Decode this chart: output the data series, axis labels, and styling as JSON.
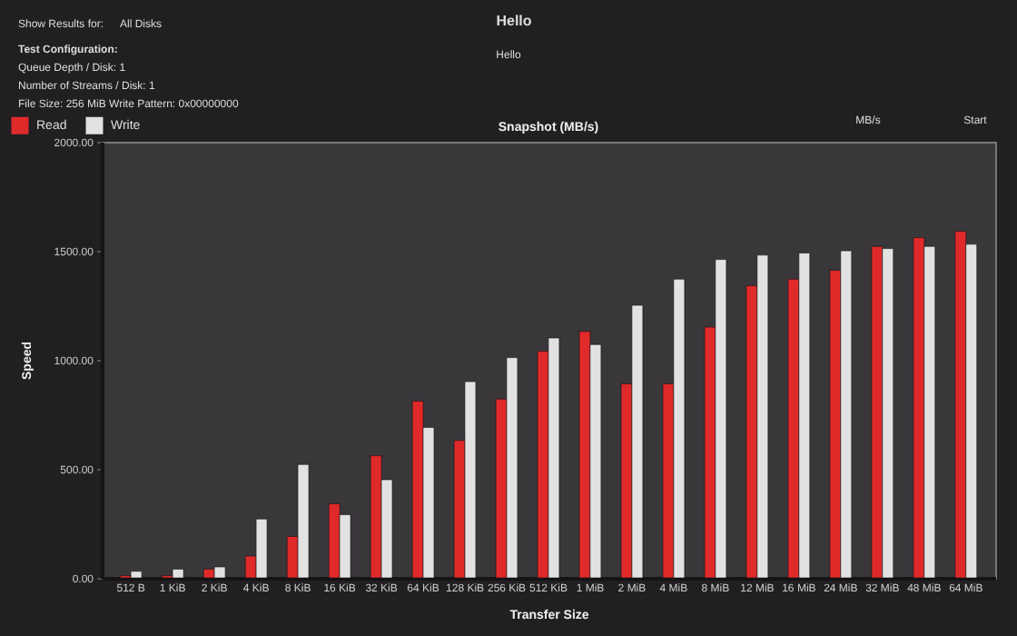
{
  "chart_data": {
    "type": "bar",
    "title": "Snapshot (MB/s)",
    "xlabel": "Transfer Size",
    "ylabel": "Speed",
    "categories": [
      "512 B",
      "1 KiB",
      "2 KiB",
      "4 KiB",
      "8 KiB",
      "16 KiB",
      "32 KiB",
      "64 KiB",
      "128 KiB",
      "256 KiB",
      "512 KiB",
      "1 MiB",
      "2 MiB",
      "4 MiB",
      "8 MiB",
      "12 MiB",
      "16 MiB",
      "24 MiB",
      "32 MiB",
      "48 MiB",
      "64 MiB"
    ],
    "series": [
      {
        "name": "Read",
        "color": "#e02a2a",
        "values": [
          10,
          10,
          40,
          100,
          190,
          340,
          560,
          810,
          630,
          820,
          1040,
          1130,
          890,
          890,
          1150,
          1340,
          1370,
          1410,
          1520,
          1560,
          1590
        ]
      },
      {
        "name": "Write",
        "color": "#e2e2e2",
        "values": [
          30,
          40,
          50,
          270,
          520,
          290,
          450,
          690,
          900,
          1010,
          1100,
          1070,
          1250,
          1370,
          1460,
          1480,
          1490,
          1500,
          1510,
          1520,
          1530
        ]
      }
    ],
    "ylim": [
      0,
      2000
    ],
    "yticks": [
      {
        "value": 0,
        "label": "0.00"
      },
      {
        "value": 500,
        "label": "500.00"
      },
      {
        "value": 1000,
        "label": "1000.00"
      },
      {
        "value": 1500,
        "label": "1500.00"
      },
      {
        "value": 2000,
        "label": "2000.00"
      }
    ],
    "grid": false,
    "legend": "top left",
    "annotations": [
      "Show Results for:",
      "All Disks",
      "Test Configuration:",
      "Queue Depth / Disk: 1",
      "Number of Streams / Disk: 1",
      "File Size: 256 MiB   Write Pattern: 0x00000000",
      "Hello",
      "Hello",
      "MB/s",
      "Start"
    ]
  }
}
